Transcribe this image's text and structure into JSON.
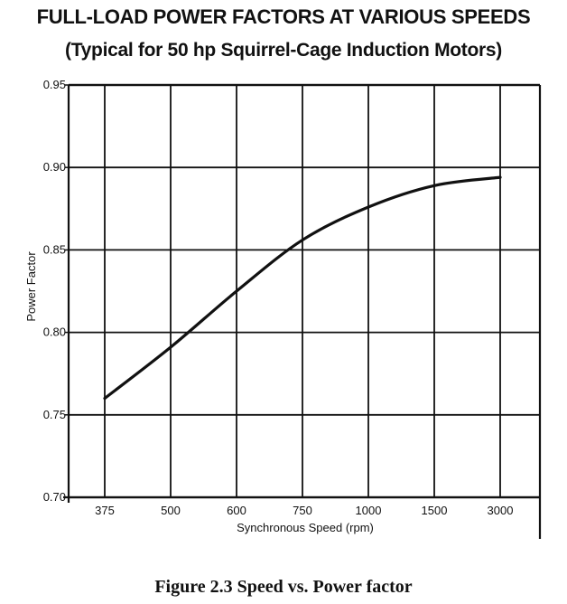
{
  "chart_data": {
    "type": "line",
    "title": "FULL-LOAD POWER FACTORS AT VARIOUS SPEEDS",
    "subtitle": "(Typical for 50 hp Squirrel-Cage Induction Motors)",
    "xlabel": "Synchronous Speed (rpm)",
    "ylabel": "Power Factor",
    "categories": [
      "375",
      "500",
      "600",
      "750",
      "1000",
      "1500",
      "3000"
    ],
    "yticks": [
      "0.70",
      "0.75",
      "0.80",
      "0.85",
      "0.90",
      "0.95"
    ],
    "ylim": [
      0.7,
      0.95
    ],
    "grid": true,
    "series": [
      {
        "values": [
          0.76,
          0.791,
          0.825,
          0.856,
          0.876,
          0.889,
          0.894
        ]
      }
    ]
  },
  "caption": "Figure 2.3 Speed vs. Power factor",
  "colors": {
    "line": "#111111",
    "grid": "#111111",
    "background": "#ffffff"
  }
}
